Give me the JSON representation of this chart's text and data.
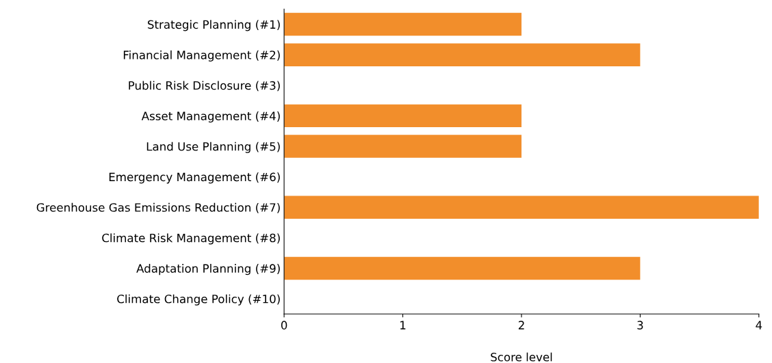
{
  "chart_data": {
    "type": "bar",
    "orientation": "horizontal",
    "xlabel": "Score level",
    "categories": [
      "Strategic Planning (#1)",
      "Financial Management (#2)",
      "Public Risk Disclosure (#3)",
      "Asset Management (#4)",
      "Land Use Planning (#5)",
      "Emergency Management (#6)",
      "Greenhouse Gas Emissions Reduction (#7)",
      "Climate Risk Management (#8)",
      "Adaptation Planning (#9)",
      "Climate Change Policy (#10)"
    ],
    "values": [
      2,
      3,
      0,
      2,
      2,
      0,
      4,
      0,
      3,
      0
    ],
    "color": "#f28e2b",
    "xlim": [
      0,
      4
    ],
    "xticks": [
      0,
      1,
      2,
      3,
      4
    ],
    "grid": false,
    "legend": false
  }
}
